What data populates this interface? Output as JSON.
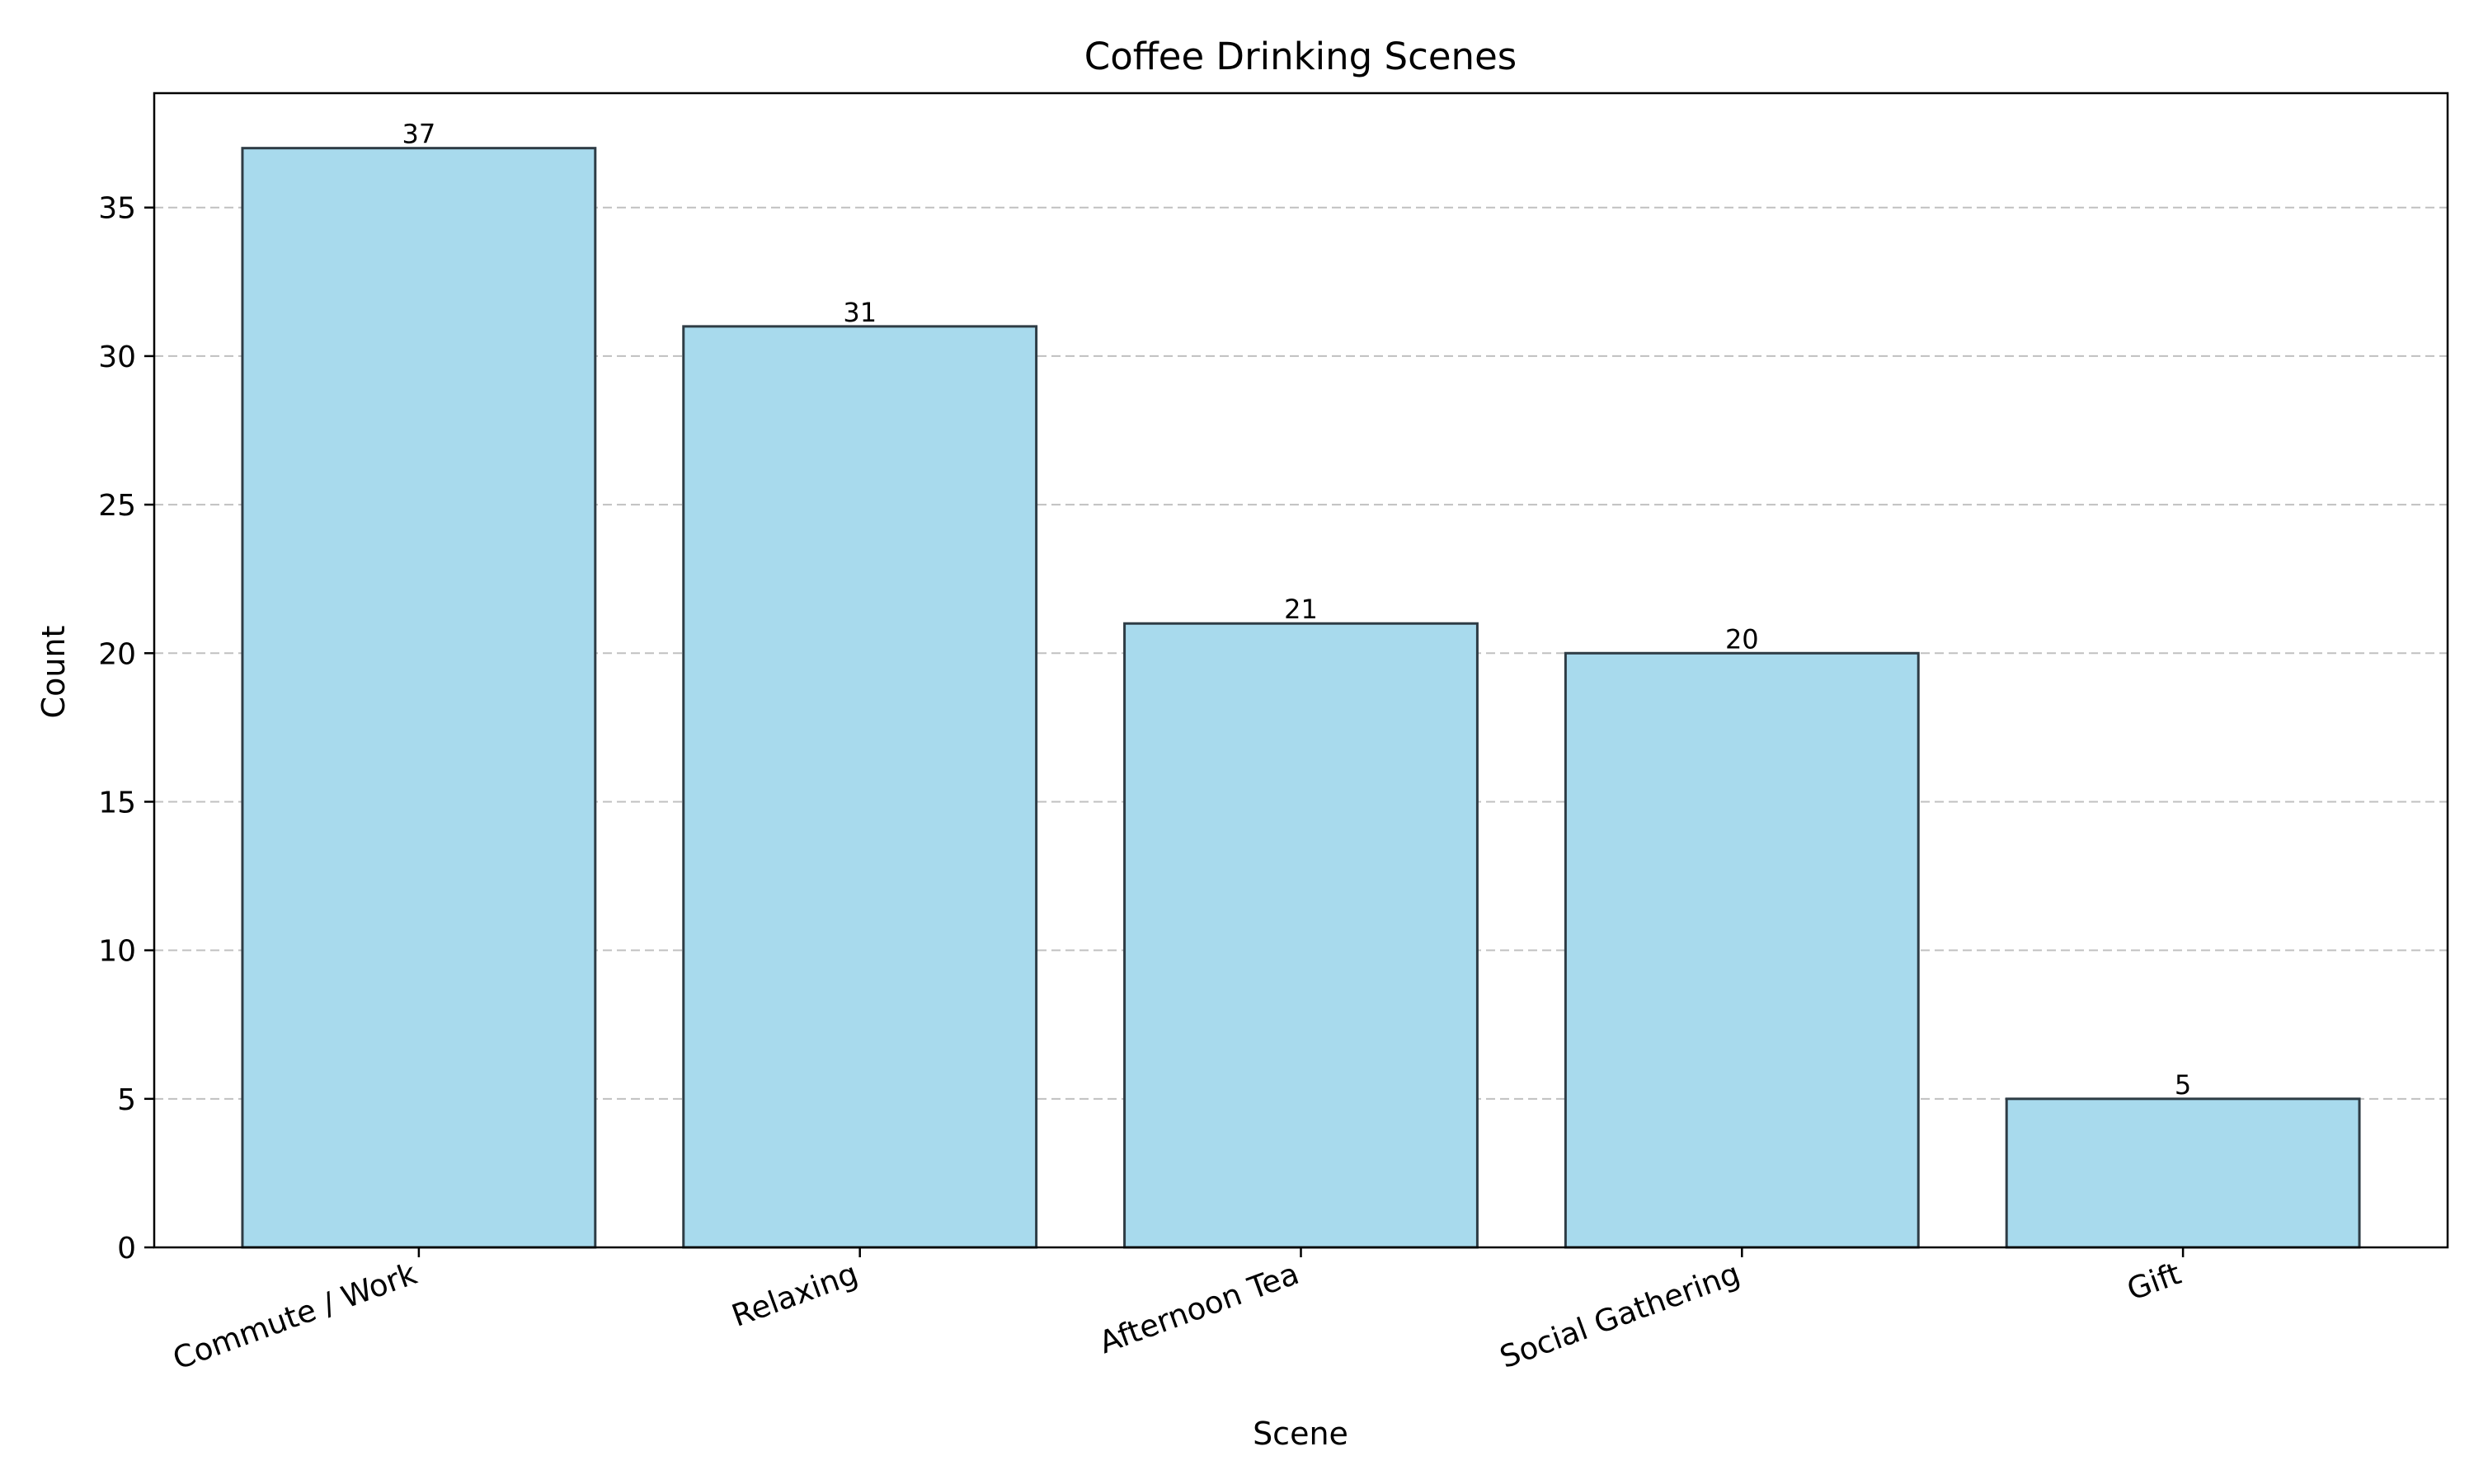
{
  "chart_data": {
    "type": "bar",
    "title": "Coffee Drinking Scenes",
    "xlabel": "Scene",
    "ylabel": "Count",
    "categories": [
      "Commute / Work",
      "Relaxing",
      "Afternoon Tea",
      "Social Gathering",
      "Gift"
    ],
    "values": [
      37,
      31,
      21,
      20,
      5
    ],
    "data_labels": [
      "37",
      "31",
      "21",
      "20",
      "5"
    ],
    "ylim": [
      0,
      38.85
    ],
    "yticks": [
      0,
      5,
      10,
      15,
      20,
      25,
      30,
      35
    ],
    "ytick_labels": [
      "0",
      "5",
      "10",
      "15",
      "20",
      "25",
      "30",
      "35"
    ],
    "grid": "y-dashed",
    "legend": "none",
    "colors": {
      "bar_fill": "#a8daed",
      "bar_edge": "#2e3c45",
      "grid": "#c0c0c0",
      "axis": "#000000"
    }
  }
}
